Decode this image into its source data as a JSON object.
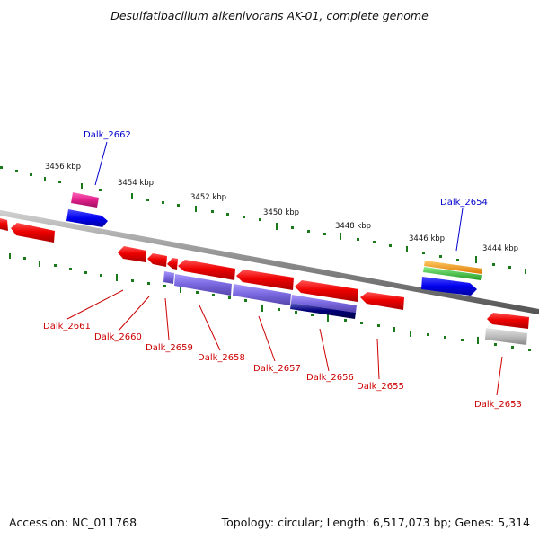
{
  "title": "Desulfatibacillum alkenivorans AK-01, complete genome",
  "accession": "Accession: NC_011768",
  "topology": "Topology: circular; Length: 6,517,073 bp; Genes: 5,314",
  "ticks": [
    "3456 kbp",
    "3454 kbp",
    "3452 kbp",
    "3450 kbp",
    "3448 kbp",
    "3446 kbp",
    "3444 kbp"
  ],
  "gene_labels": {
    "g2662": "Dalk_2662",
    "g2654": "Dalk_2654",
    "g2661": "Dalk_2661",
    "g2660": "Dalk_2660",
    "g2659": "Dalk_2659",
    "g2658": "Dalk_2658",
    "g2657": "Dalk_2657",
    "g2656": "Dalk_2656",
    "g2655": "Dalk_2655",
    "g2653": "Dalk_2653"
  },
  "colors": {
    "backbone": "#8a8a8a",
    "tick_green": "#1a7a1a",
    "gene_red": "#ee0000",
    "gene_blue": "#0000ee",
    "gene_magenta": "#e0208a",
    "gene_orange": "#ff9900",
    "gene_green": "#33bb33",
    "gene_lavender": "#7766dd",
    "gene_navy": "#000077",
    "gene_gray": "#aaaaaa",
    "label_red": "#cc0000",
    "label_blue": "#0000cc"
  }
}
